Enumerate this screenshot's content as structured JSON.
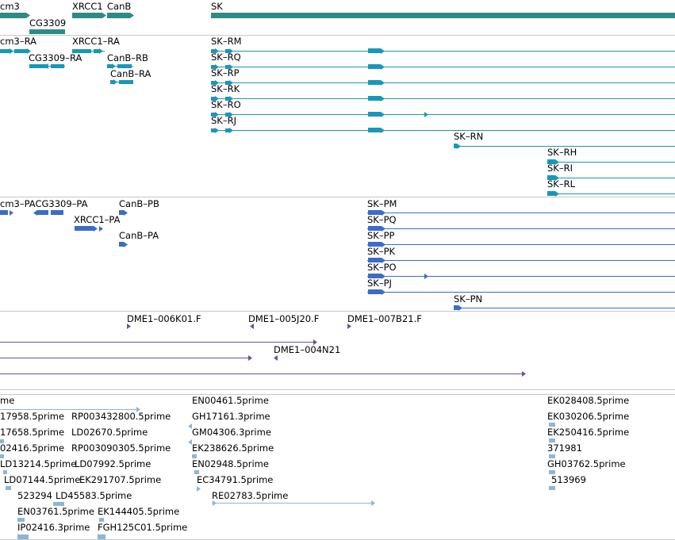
{
  "colors": {
    "gene": "#2e8b84",
    "transcript": "#1798b8",
    "protein": "#3a6cc8",
    "clone": "#6a4fa6",
    "est": "#8ab7d6",
    "separator": "#c8c8c8"
  },
  "tracks": {
    "genes": [
      "cm3",
      "XRCC1",
      "CanB",
      "SK",
      "CG3309"
    ],
    "transcripts": [
      "cm3–RA",
      "XRCC1–RA",
      "CG3309–RA",
      "CanB–RB",
      "CanB–RA",
      "SK–RM",
      "SK–RQ",
      "SK–RP",
      "SK–RK",
      "SK–RO",
      "SK–RJ",
      "SK–RN",
      "SK–RH",
      "SK–RI",
      "SK–RL"
    ],
    "proteins": [
      "cm3–PACG3309–PA",
      "CanB–PB",
      "XRCC1–PA",
      "CanB–PA",
      "SK–PM",
      "SK–PQ",
      "SK–PP",
      "SK–PK",
      "SK–PO",
      "SK–PJ",
      "SK–PN"
    ],
    "clones": [
      "DME1–006K01.F",
      "DME1–005J20.F",
      "DME1–007B21.F",
      "DME1–004N21"
    ],
    "ests": [
      "me",
      "17958.5prime",
      "RP003432800.5prime",
      "17658.5prime",
      "LD02670.5prime",
      "02416.5prime",
      "RP003090305.5prime",
      "LD13214.5prime",
      "LD07992.5prime",
      "LD07144.5prime",
      "EK291707.5prime",
      "523294",
      "LD45583.5prime",
      "EN03761.5prime",
      "EK144405.5prime",
      "IP02416.3prime",
      "FGH125C01.5prime",
      "EN00461.5prime",
      "GH17161.3prime",
      "GM04306.3prime",
      "EK238626.5prime",
      "EN02948.5prime",
      "EC34791.5prime",
      "RE02783.5prime",
      "EK028408.5prime",
      "EK030206.5prime",
      "EK250416.5prime",
      "371981",
      "GH03762.5prime",
      "513969"
    ]
  }
}
